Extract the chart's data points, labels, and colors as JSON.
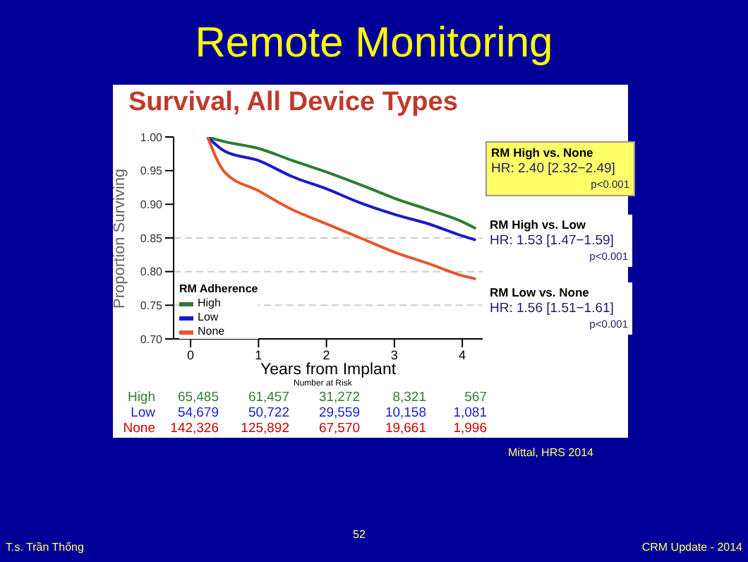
{
  "chart_data": {
    "type": "line",
    "title": "Remote Monitoring",
    "subtitle": "Survival, All Device Types",
    "xlabel": "Years from Implant",
    "ylabel": "Proportion Surviving",
    "legend_title": "RM Adherence",
    "legend": "bottom left",
    "x": [
      0.25,
      0.5,
      1,
      1.5,
      2,
      2.5,
      3,
      3.5,
      4,
      4.2
    ],
    "series": [
      {
        "name": "High",
        "color": "#2e7d32",
        "values": [
          1.0,
          0.993,
          0.983,
          0.965,
          0.948,
          0.929,
          0.909,
          0.892,
          0.874,
          0.864
        ]
      },
      {
        "name": "Low",
        "color": "#1a1acc",
        "values": [
          1.0,
          0.979,
          0.965,
          0.941,
          0.923,
          0.902,
          0.885,
          0.871,
          0.853,
          0.847
        ]
      },
      {
        "name": "None",
        "color": "#e8562a",
        "values": [
          1.0,
          0.948,
          0.92,
          0.892,
          0.871,
          0.85,
          0.829,
          0.812,
          0.794,
          0.789
        ]
      }
    ],
    "xlim": [
      -0.25,
      4.3
    ],
    "xticks": [
      0,
      1,
      2,
      3,
      4
    ],
    "ylim": [
      0.7,
      1.0
    ],
    "yticks": [
      {
        "value": 0.7,
        "label": "0.70"
      },
      {
        "value": 0.75,
        "label": "0.75"
      },
      {
        "value": 0.8,
        "label": "0.80"
      },
      {
        "value": 0.85,
        "label": "0.85"
      },
      {
        "value": 0.9,
        "label": "0.90"
      },
      {
        "value": 0.95,
        "label": "0.95"
      },
      {
        "value": 1.0,
        "label": "1.00"
      }
    ],
    "ref_lines": [
      {
        "axis": "y",
        "value": 0.85,
        "color": "#cccccc",
        "line_style": "dashed"
      },
      {
        "axis": "y",
        "value": 0.8,
        "color": "#cccccc",
        "line_style": "dashed"
      },
      {
        "axis": "y",
        "value": 0.75,
        "color": "#cccccc",
        "line_style": "dashed"
      }
    ],
    "line_style": "solid",
    "annotations": [
      "RM High vs. None",
      "HR: 2.40 [2.32−2.49]",
      "p<0.001",
      "RM High vs. Low",
      "HR: 1.53 [1.47−1.59]",
      "p<0.001",
      "RM Low vs. None",
      "HR: 1.56 [1.51−1.61]",
      "p<0.001",
      "Number at Risk",
      "High",
      "65,485",
      "61,457",
      "31,272",
      "8,321",
      "567",
      "Low",
      "54,679",
      "50,722",
      "29,559",
      "10,158",
      "1,081",
      "None",
      "142,326",
      "125,892",
      "67,570",
      "19,661",
      "1,996",
      "Mittal, HRS 2014",
      "52",
      "T.s. Trần Thống",
      "CRM Update - 2014"
    ]
  }
}
